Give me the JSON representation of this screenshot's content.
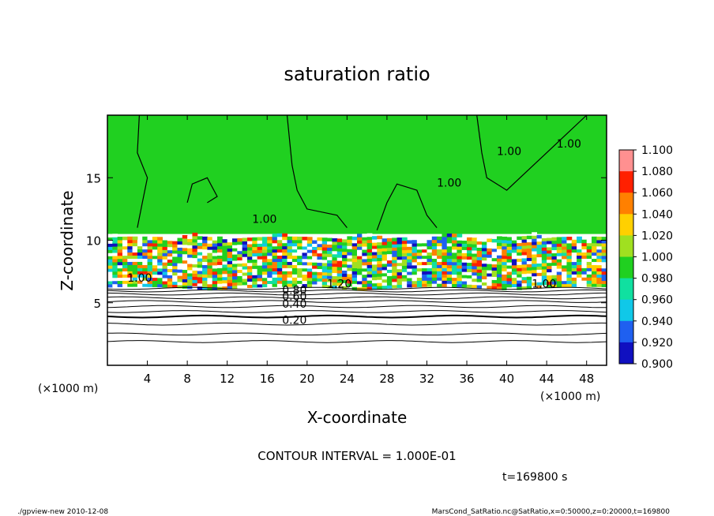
{
  "chart_data": {
    "type": "heatmap",
    "title": "saturation ratio",
    "xlabel": "X-coordinate",
    "ylabel": "Z-coordinate",
    "x_unit": "(×1000 m)",
    "y_unit": "(×1000 m)",
    "xlim": [
      0,
      50
    ],
    "ylim": [
      0,
      20
    ],
    "x_ticks": [
      4,
      8,
      12,
      16,
      20,
      24,
      28,
      32,
      36,
      40,
      44,
      48
    ],
    "y_ticks": [
      5,
      10,
      15
    ],
    "colorbar_levels": [
      "0.900",
      "0.920",
      "0.940",
      "0.960",
      "0.980",
      "1.000",
      "1.020",
      "1.040",
      "1.060",
      "1.080",
      "1.100"
    ],
    "colorbar_colors": [
      "#7a1fa0",
      "#1010c0",
      "#1f60f0",
      "#10c8e8",
      "#10e0a0",
      "#20d020",
      "#a0e020",
      "#ffd000",
      "#ff8000",
      "#ff2000",
      "#ff9090"
    ],
    "contour_interval": "CONTOUR INTERVAL = 1.000E-01",
    "contour_labels": [
      "0.20",
      "0.40",
      "0.60",
      "0.80",
      "1.00",
      "1.20"
    ],
    "time_label": "t=169800 s",
    "background_value": 1.0,
    "cloud_band_z": [
      6,
      10.5
    ]
  },
  "footer": {
    "left": "./gpview-new  2010-12-08",
    "right": "MarsCond_SatRatio.nc@SatRatio,x=0:50000,z=0:20000,t=169800"
  }
}
